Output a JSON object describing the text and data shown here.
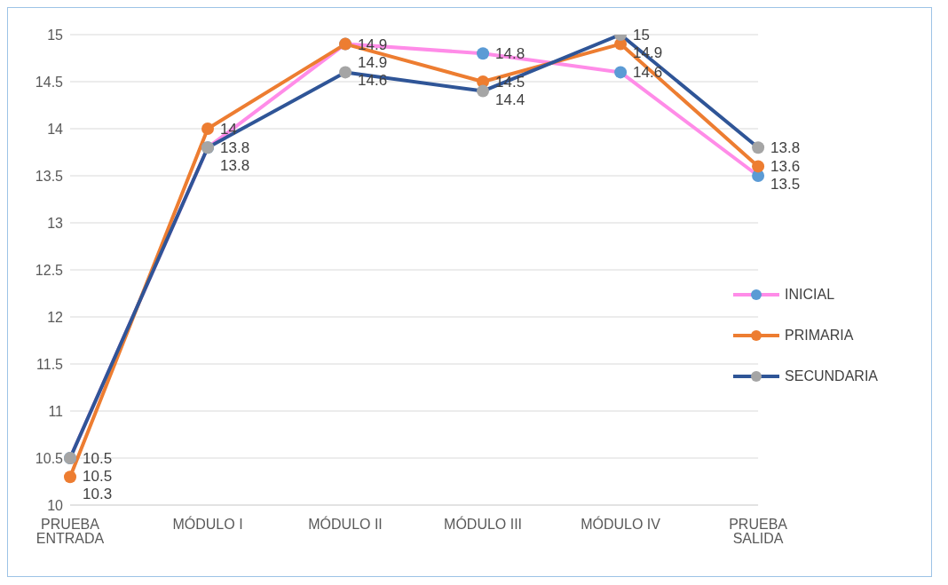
{
  "chart_data": {
    "type": "line",
    "categories": [
      "PRUEBA ENTRADA",
      "MÓDULO I",
      "MÓDULO II",
      "MÓDULO III",
      "MÓDULO IV",
      "PRUEBA SALIDA"
    ],
    "series": [
      {
        "name": "INICIAL",
        "color": "#ff8ce8",
        "colors": [
          "#5b9bd5",
          "#5b9bd5",
          "#5b9bd5",
          "#5b9bd5",
          "#5b9bd5",
          "#5b9bd5"
        ],
        "values": [
          10.5,
          13.8,
          14.9,
          14.8,
          14.6,
          13.5
        ]
      },
      {
        "name": "PRIMARIA",
        "color": "#ed7d31",
        "colors": [
          "#ed7d31",
          "#ed7d31",
          "#ed7d31",
          "#ed7d31",
          "#ed7d31",
          "#ed7d31"
        ],
        "values": [
          10.3,
          14,
          14.9,
          14.5,
          14.9,
          13.6
        ]
      },
      {
        "name": "SECUNDARIA",
        "color": "#2f5597",
        "colors": [
          "#a5a5a5",
          "#a5a5a5",
          "#a5a5a5",
          "#a5a5a5",
          "#a5a5a5",
          "#a5a5a5"
        ],
        "values": [
          10.5,
          13.8,
          14.6,
          14.4,
          15,
          13.8
        ]
      }
    ],
    "ylim": [
      10,
      15
    ],
    "yticks": [
      10,
      10.5,
      11,
      11.5,
      12,
      12.5,
      13,
      13.5,
      14,
      14.5,
      15
    ],
    "grid": "y",
    "legend": "right",
    "marker": "circle",
    "line_style": "solid",
    "data_labels": true
  }
}
